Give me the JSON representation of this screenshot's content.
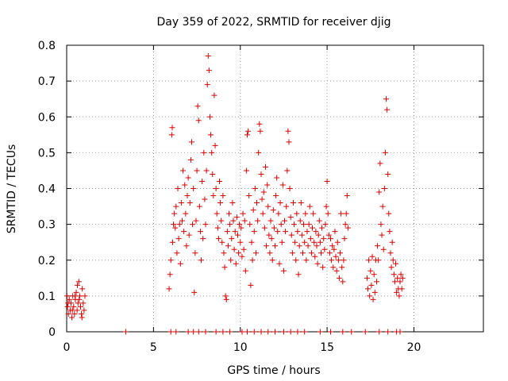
{
  "chart_data": {
    "type": "scatter",
    "title": "Day 359 of 2022, SRMTID for receiver djig",
    "xlabel": "GPS time / hours",
    "ylabel": "SRMTID / TECUs",
    "xlim": [
      0,
      24
    ],
    "ylim": [
      0,
      0.8
    ],
    "xticks": [
      0,
      5,
      10,
      15,
      20
    ],
    "xtick_labels": [
      "0",
      "5",
      "10",
      "15",
      "20"
    ],
    "yticks": [
      0,
      0.1,
      0.2,
      0.3,
      0.4,
      0.5,
      0.6,
      0.7,
      0.8
    ],
    "ytick_labels": [
      "0",
      "0.1",
      "0.2",
      "0.3",
      "0.4",
      "0.5",
      "0.6",
      "0.7",
      "0.8"
    ],
    "grid": true,
    "marker": "+",
    "series": [
      {
        "name": "SRMTID",
        "color": "#dd0000",
        "points": [
          [
            0.02,
            0.1
          ],
          [
            0.05,
            0.07
          ],
          [
            0.1,
            0.05
          ],
          [
            0.15,
            0.09
          ],
          [
            0.2,
            0.06
          ],
          [
            0.25,
            0.08
          ],
          [
            0.3,
            0.04
          ],
          [
            0.35,
            0.1
          ],
          [
            0.4,
            0.07
          ],
          [
            0.45,
            0.05
          ],
          [
            0.5,
            0.09
          ],
          [
            0.55,
            0.11
          ],
          [
            0.6,
            0.06
          ],
          [
            0.62,
            0.13
          ],
          [
            0.65,
            0.08
          ],
          [
            0.7,
            0.14
          ],
          [
            0.75,
            0.1
          ],
          [
            0.8,
            0.07
          ],
          [
            0.85,
            0.05
          ],
          [
            0.9,
            0.12
          ],
          [
            0.95,
            0.08
          ],
          [
            1.0,
            0.06
          ],
          [
            1.05,
            0.1
          ],
          [
            0.08,
            0.08
          ],
          [
            0.33,
            0.06
          ],
          [
            0.48,
            0.1
          ],
          [
            0.72,
            0.09
          ],
          [
            0.88,
            0.04
          ],
          [
            3.4,
            0.0
          ],
          [
            5.9,
            0.12
          ],
          [
            5.95,
            0.16
          ],
          [
            6.0,
            0.2
          ],
          [
            6.05,
            0.55
          ],
          [
            6.08,
            0.57
          ],
          [
            6.1,
            0.25
          ],
          [
            6.15,
            0.3
          ],
          [
            6.2,
            0.33
          ],
          [
            6.25,
            0.29
          ],
          [
            6.3,
            0.35
          ],
          [
            6.35,
            0.22
          ],
          [
            6.4,
            0.4
          ],
          [
            6.45,
            0.26
          ],
          [
            6.5,
            0.3
          ],
          [
            6.55,
            0.19
          ],
          [
            6.6,
            0.36
          ],
          [
            6.65,
            0.31
          ],
          [
            6.7,
            0.45
          ],
          [
            6.75,
            0.28
          ],
          [
            6.8,
            0.41
          ],
          [
            6.85,
            0.33
          ],
          [
            6.9,
            0.24
          ],
          [
            6.95,
            0.38
          ],
          [
            7.0,
            0.43
          ],
          [
            7.05,
            0.27
          ],
          [
            7.1,
            0.36
          ],
          [
            7.15,
            0.48
          ],
          [
            7.2,
            0.53
          ],
          [
            7.25,
            0.3
          ],
          [
            7.3,
            0.4
          ],
          [
            7.35,
            0.11
          ],
          [
            7.4,
            0.22
          ],
          [
            7.45,
            0.31
          ],
          [
            7.5,
            0.45
          ],
          [
            7.55,
            0.63
          ],
          [
            7.6,
            0.59
          ],
          [
            7.65,
            0.35
          ],
          [
            7.7,
            0.28
          ],
          [
            7.75,
            0.2
          ],
          [
            7.8,
            0.42
          ],
          [
            7.85,
            0.26
          ],
          [
            7.9,
            0.5
          ],
          [
            7.95,
            0.37
          ],
          [
            8.0,
            0.3
          ],
          [
            8.05,
            0.45
          ],
          [
            8.1,
            0.69
          ],
          [
            8.15,
            0.77
          ],
          [
            8.2,
            0.73
          ],
          [
            8.25,
            0.6
          ],
          [
            8.3,
            0.55
          ],
          [
            8.35,
            0.5
          ],
          [
            8.4,
            0.44
          ],
          [
            8.45,
            0.38
          ],
          [
            8.5,
            0.66
          ],
          [
            8.55,
            0.52
          ],
          [
            8.6,
            0.4
          ],
          [
            8.65,
            0.33
          ],
          [
            8.7,
            0.29
          ],
          [
            8.75,
            0.26
          ],
          [
            8.8,
            0.42
          ],
          [
            8.85,
            0.36
          ],
          [
            8.9,
            0.31
          ],
          [
            8.95,
            0.25
          ],
          [
            9.0,
            0.38
          ],
          [
            9.05,
            0.22
          ],
          [
            9.1,
            0.18
          ],
          [
            9.15,
            0.1
          ],
          [
            9.2,
            0.09
          ],
          [
            9.25,
            0.28
          ],
          [
            9.3,
            0.24
          ],
          [
            9.35,
            0.33
          ],
          [
            9.4,
            0.3
          ],
          [
            9.45,
            0.2
          ],
          [
            9.5,
            0.26
          ],
          [
            9.55,
            0.36
          ],
          [
            9.6,
            0.31
          ],
          [
            9.65,
            0.23
          ],
          [
            9.7,
            0.28
          ],
          [
            9.75,
            0.19
          ],
          [
            9.8,
            0.32
          ],
          [
            9.85,
            0.27
          ],
          [
            9.9,
            0.22
          ],
          [
            9.95,
            0.3
          ],
          [
            10.0,
            0.25
          ],
          [
            10.05,
            0.29
          ],
          [
            10.1,
            0.21
          ],
          [
            10.15,
            0.33
          ],
          [
            10.2,
            0.23
          ],
          [
            10.25,
            0.31
          ],
          [
            10.3,
            0.17
          ],
          [
            10.35,
            0.45
          ],
          [
            10.4,
            0.55
          ],
          [
            10.45,
            0.56
          ],
          [
            10.5,
            0.38
          ],
          [
            10.55,
            0.3
          ],
          [
            10.6,
            0.13
          ],
          [
            10.65,
            0.25
          ],
          [
            10.7,
            0.2
          ],
          [
            10.75,
            0.34
          ],
          [
            10.8,
            0.28
          ],
          [
            10.85,
            0.4
          ],
          [
            10.9,
            0.22
          ],
          [
            10.95,
            0.36
          ],
          [
            11.0,
            0.31
          ],
          [
            11.05,
            0.5
          ],
          [
            11.1,
            0.58
          ],
          [
            11.15,
            0.56
          ],
          [
            11.2,
            0.44
          ],
          [
            11.25,
            0.37
          ],
          [
            11.3,
            0.33
          ],
          [
            11.35,
            0.39
          ],
          [
            11.4,
            0.29
          ],
          [
            11.45,
            0.46
          ],
          [
            11.5,
            0.24
          ],
          [
            11.55,
            0.41
          ],
          [
            11.6,
            0.35
          ],
          [
            11.65,
            0.27
          ],
          [
            11.7,
            0.22
          ],
          [
            11.75,
            0.31
          ],
          [
            11.8,
            0.26
          ],
          [
            11.85,
            0.2
          ],
          [
            11.9,
            0.34
          ],
          [
            11.95,
            0.29
          ],
          [
            12.0,
            0.24
          ],
          [
            12.05,
            0.38
          ],
          [
            12.1,
            0.43
          ],
          [
            12.15,
            0.28
          ],
          [
            12.2,
            0.33
          ],
          [
            12.25,
            0.19
          ],
          [
            12.3,
            0.36
          ],
          [
            12.35,
            0.3
          ],
          [
            12.4,
            0.25
          ],
          [
            12.45,
            0.41
          ],
          [
            12.5,
            0.17
          ],
          [
            12.55,
            0.31
          ],
          [
            12.6,
            0.28
          ],
          [
            12.65,
            0.35
          ],
          [
            12.7,
            0.45
          ],
          [
            12.75,
            0.56
          ],
          [
            12.8,
            0.53
          ],
          [
            12.85,
            0.4
          ],
          [
            12.9,
            0.32
          ],
          [
            12.95,
            0.27
          ],
          [
            13.0,
            0.22
          ],
          [
            13.05,
            0.36
          ],
          [
            13.1,
            0.3
          ],
          [
            13.15,
            0.25
          ],
          [
            13.2,
            0.2
          ],
          [
            13.25,
            0.33
          ],
          [
            13.3,
            0.28
          ],
          [
            13.35,
            0.16
          ],
          [
            13.4,
            0.24
          ],
          [
            13.45,
            0.31
          ],
          [
            13.5,
            0.36
          ],
          [
            13.55,
            0.27
          ],
          [
            13.6,
            0.22
          ],
          [
            13.65,
            0.3
          ],
          [
            13.7,
            0.25
          ],
          [
            13.75,
            0.33
          ],
          [
            13.8,
            0.2
          ],
          [
            13.85,
            0.28
          ],
          [
            13.9,
            0.24
          ],
          [
            13.95,
            0.3
          ],
          [
            14.0,
            0.35
          ],
          [
            14.05,
            0.26
          ],
          [
            14.1,
            0.22
          ],
          [
            14.15,
            0.29
          ],
          [
            14.2,
            0.33
          ],
          [
            14.25,
            0.25
          ],
          [
            14.3,
            0.21
          ],
          [
            14.35,
            0.28
          ],
          [
            14.4,
            0.24
          ],
          [
            14.45,
            0.19
          ],
          [
            14.5,
            0.27
          ],
          [
            14.55,
            0.31
          ],
          [
            14.6,
            0.25
          ],
          [
            14.65,
            0.22
          ],
          [
            14.7,
            0.29
          ],
          [
            14.75,
            0.18
          ],
          [
            14.8,
            0.26
          ],
          [
            14.85,
            0.23
          ],
          [
            14.9,
            0.3
          ],
          [
            14.95,
            0.35
          ],
          [
            15.0,
            0.42
          ],
          [
            15.05,
            0.33
          ],
          [
            15.1,
            0.27
          ],
          [
            15.15,
            0.22
          ],
          [
            15.2,
            0.26
          ],
          [
            15.25,
            0.2
          ],
          [
            15.3,
            0.24
          ],
          [
            15.35,
            0.18
          ],
          [
            15.4,
            0.23
          ],
          [
            15.45,
            0.28
          ],
          [
            15.5,
            0.21
          ],
          [
            15.55,
            0.17
          ],
          [
            15.6,
            0.25
          ],
          [
            15.65,
            0.2
          ],
          [
            15.7,
            0.15
          ],
          [
            15.75,
            0.22
          ],
          [
            15.8,
            0.33
          ],
          [
            15.85,
            0.18
          ],
          [
            15.9,
            0.14
          ],
          [
            15.95,
            0.2
          ],
          [
            16.0,
            0.26
          ],
          [
            16.05,
            0.3
          ],
          [
            16.1,
            0.33
          ],
          [
            16.15,
            0.38
          ],
          [
            16.2,
            0.29
          ],
          [
            17.3,
            0.15
          ],
          [
            17.35,
            0.12
          ],
          [
            17.4,
            0.2
          ],
          [
            17.45,
            0.1
          ],
          [
            17.5,
            0.17
          ],
          [
            17.55,
            0.13
          ],
          [
            17.6,
            0.21
          ],
          [
            17.65,
            0.09
          ],
          [
            17.7,
            0.16
          ],
          [
            17.75,
            0.11
          ],
          [
            17.8,
            0.2
          ],
          [
            17.85,
            0.14
          ],
          [
            17.9,
            0.24
          ],
          [
            17.95,
            0.2
          ],
          [
            18.0,
            0.39
          ],
          [
            18.05,
            0.47
          ],
          [
            18.1,
            0.3
          ],
          [
            18.15,
            0.27
          ],
          [
            18.2,
            0.35
          ],
          [
            18.25,
            0.23
          ],
          [
            18.3,
            0.4
          ],
          [
            18.35,
            0.5
          ],
          [
            18.4,
            0.65
          ],
          [
            18.45,
            0.62
          ],
          [
            18.5,
            0.44
          ],
          [
            18.55,
            0.33
          ],
          [
            18.6,
            0.28
          ],
          [
            18.65,
            0.22
          ],
          [
            18.7,
            0.18
          ],
          [
            18.75,
            0.25
          ],
          [
            18.8,
            0.2
          ],
          [
            18.85,
            0.16
          ],
          [
            18.9,
            0.14
          ],
          [
            18.95,
            0.19
          ],
          [
            19.0,
            0.11
          ],
          [
            19.05,
            0.15
          ],
          [
            19.1,
            0.12
          ],
          [
            19.15,
            0.1
          ],
          [
            19.2,
            0.14
          ],
          [
            19.25,
            0.16
          ],
          [
            19.3,
            0.12
          ],
          [
            19.35,
            0.15
          ],
          [
            6.0,
            0.0
          ],
          [
            6.3,
            0.0
          ],
          [
            7.0,
            0.0
          ],
          [
            7.3,
            0.0
          ],
          [
            7.6,
            0.0
          ],
          [
            8.0,
            0.0
          ],
          [
            8.6,
            0.0
          ],
          [
            9.0,
            0.0
          ],
          [
            9.4,
            0.0
          ],
          [
            10.1,
            0.0
          ],
          [
            10.4,
            0.0
          ],
          [
            10.8,
            0.0
          ],
          [
            11.2,
            0.0
          ],
          [
            11.6,
            0.0
          ],
          [
            12.0,
            0.0
          ],
          [
            12.5,
            0.0
          ],
          [
            12.9,
            0.0
          ],
          [
            13.3,
            0.0
          ],
          [
            13.7,
            0.0
          ],
          [
            14.6,
            0.0
          ],
          [
            15.2,
            0.0
          ],
          [
            15.9,
            0.0
          ],
          [
            16.4,
            0.0
          ],
          [
            17.2,
            0.0
          ],
          [
            18.0,
            0.0
          ],
          [
            18.5,
            0.0
          ],
          [
            19.0,
            0.0
          ],
          [
            19.2,
            0.0
          ]
        ]
      }
    ]
  }
}
